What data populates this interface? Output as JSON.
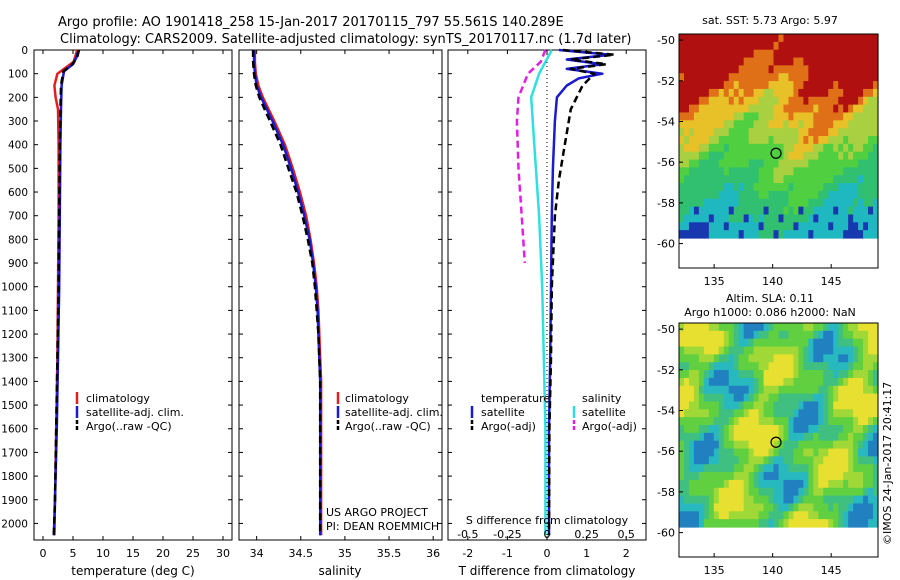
{
  "header": {
    "title_line1": "Argo profile: AO 1901418_258 15-Jan-2017 20170115_797 55.561S 140.289E",
    "title_line2": "Climatology: CARS2009. Satellite-adjusted climatology: synTS_20170117.nc (1.7d later)"
  },
  "footer": {
    "credit_line1": "US ARGO PROJECT",
    "credit_line2": "PI: DEAN ROEMMICH",
    "timestamp": "©IMOS 24-Jan-2017 20:41:17"
  },
  "colors": {
    "climatology": "#e02020",
    "satellite": "#1a1ad0",
    "argo": "#000000",
    "salinity_satellite": "#30e0e0",
    "salinity_argo": "#e020e0"
  },
  "depth_axis": {
    "ticks": [
      "0",
      "100",
      "200",
      "300",
      "400",
      "500",
      "600",
      "700",
      "800",
      "900",
      "1000",
      "1100",
      "1200",
      "1300",
      "1400",
      "1500",
      "1600",
      "1700",
      "1800",
      "1900",
      "2000"
    ],
    "ylim": [
      0,
      2070
    ],
    "reversed": true
  },
  "chart_data": [
    {
      "type": "line",
      "xlabel": "temperature (deg C)",
      "xlim": [
        -1.5,
        31.5
      ],
      "xticks": [
        "0",
        "5",
        "10",
        "15",
        "20",
        "25",
        "30"
      ],
      "xtick_values": [
        0,
        5,
        10,
        15,
        20,
        25,
        30
      ],
      "legend": [
        "climatology",
        "satellite-adj. clim.",
        "Argo(..raw -QC)"
      ],
      "legend_placement": "lower-center",
      "series": [
        {
          "name": "climatology",
          "style": "solid",
          "color": "#e02020",
          "depth": [
            0,
            50,
            100,
            150,
            200,
            250,
            400,
            700,
            1000,
            1300,
            1600,
            1900,
            2050
          ],
          "values": [
            5.7,
            5.1,
            2.4,
            1.9,
            2.1,
            2.5,
            2.6,
            2.6,
            2.5,
            2.4,
            2.2,
            2.0,
            1.9
          ]
        },
        {
          "name": "satellite-adj. clim.",
          "style": "solid",
          "color": "#1a1ad0",
          "depth": [
            0,
            30,
            60,
            90,
            150,
            250,
            400,
            700,
            1000,
            1300,
            1600,
            1900,
            2050
          ],
          "values": [
            5.9,
            5.6,
            5.0,
            3.5,
            3.1,
            3.0,
            2.9,
            2.8,
            2.7,
            2.5,
            2.3,
            2.0,
            1.8
          ]
        },
        {
          "name": "Argo(..raw -QC)",
          "style": "dashed",
          "color": "#000000",
          "depth": [
            0,
            30,
            60,
            90,
            150,
            250,
            400,
            700,
            1000,
            1300,
            1600,
            1900,
            2050
          ],
          "values": [
            6.0,
            5.7,
            4.9,
            3.4,
            3.0,
            2.9,
            2.8,
            2.7,
            2.6,
            2.4,
            2.2,
            2.0,
            1.8
          ]
        }
      ]
    },
    {
      "type": "line",
      "xlabel": "salinity",
      "xlim": [
        33.8,
        36.1
      ],
      "xticks": [
        "34",
        "34.5",
        "35",
        "35.5",
        "36"
      ],
      "xtick_values": [
        34,
        34.5,
        35,
        35.5,
        36
      ],
      "legend": [
        "climatology",
        "satellite-adj. clim.",
        "Argo(..raw -QC)"
      ],
      "legend_placement": "lower-right",
      "series": [
        {
          "name": "climatology",
          "style": "solid",
          "color": "#e02020",
          "depth": [
            0,
            50,
            100,
            150,
            200,
            300,
            400,
            500,
            600,
            700,
            800,
            900,
            1000,
            1100,
            1200,
            1300,
            1400,
            1600,
            2050
          ],
          "values": [
            33.98,
            33.98,
            33.99,
            34.02,
            34.07,
            34.2,
            34.32,
            34.41,
            34.49,
            34.56,
            34.61,
            34.65,
            34.68,
            34.7,
            34.71,
            34.72,
            34.73,
            34.73,
            34.73
          ]
        },
        {
          "name": "satellite-adj. clim.",
          "style": "solid",
          "color": "#1a1ad0",
          "depth": [
            0,
            50,
            100,
            150,
            200,
            300,
            400,
            500,
            600,
            700,
            800,
            900,
            1000,
            1100,
            1200,
            1300,
            1400,
            1600,
            2050
          ],
          "values": [
            33.97,
            33.97,
            33.98,
            34.0,
            34.05,
            34.18,
            34.3,
            34.39,
            34.47,
            34.54,
            34.6,
            34.64,
            34.67,
            34.69,
            34.7,
            34.71,
            34.72,
            34.72,
            34.72
          ]
        },
        {
          "name": "Argo(..raw -QC)",
          "style": "dashed",
          "color": "#000000",
          "depth": [
            0,
            50,
            100,
            150,
            200,
            300,
            400,
            500,
            600,
            700,
            800,
            900,
            1000,
            1100,
            1200,
            1300,
            1400,
            1600,
            2050
          ],
          "values": [
            33.96,
            33.96,
            33.97,
            33.99,
            34.03,
            34.15,
            34.27,
            34.36,
            34.45,
            34.52,
            34.58,
            34.63,
            34.66,
            34.68,
            34.7,
            34.71,
            34.72,
            34.72,
            34.72
          ]
        }
      ]
    },
    {
      "type": "line",
      "xlabel": "T difference from climatology",
      "xlabel_top": "S difference from climatology",
      "xlim": [
        -2.5,
        2.5
      ],
      "xticks": [
        "-2",
        "-1",
        "0",
        "1",
        "2"
      ],
      "xtick_values": [
        -2,
        -1,
        0,
        1,
        2
      ],
      "s_ticks": [
        "-0.5",
        "-0.25",
        "0",
        "0.25",
        "0.5"
      ],
      "s_tick_values": [
        -0.5,
        -0.25,
        0,
        0.25,
        0.5
      ],
      "legend_temperature": {
        "title": "temperature",
        "items": [
          "satellite",
          "Argo(-adj)"
        ]
      },
      "legend_salinity": {
        "title": "salinity",
        "items": [
          "satellite",
          "Argo(-adj)"
        ]
      },
      "legend_placement": "lower-center",
      "series": [
        {
          "name": "temperature satellite",
          "style": "solid",
          "color": "#1a1ad0",
          "depth": [
            0,
            20,
            40,
            60,
            80,
            100,
            120,
            150,
            200,
            300,
            500,
            700,
            1000,
            1300,
            1600,
            2050
          ],
          "values": [
            0.3,
            1.6,
            0.5,
            1.4,
            0.5,
            1.4,
            0.8,
            0.5,
            0.25,
            0.2,
            0.15,
            0.12,
            0.1,
            0.08,
            0.05,
            0.05
          ]
        },
        {
          "name": "temperature Argo(-adj)",
          "style": "dashed",
          "color": "#000000",
          "depth": [
            0,
            20,
            40,
            60,
            80,
            100,
            150,
            250,
            400,
            550,
            700,
            1000,
            1300,
            1600,
            2050
          ],
          "values": [
            0.4,
            1.7,
            0.6,
            1.5,
            0.6,
            1.2,
            0.9,
            0.6,
            0.45,
            0.3,
            0.2,
            0.12,
            0.1,
            0.06,
            0.05
          ]
        },
        {
          "name": "salinity satellite",
          "style": "solid",
          "color": "#30e0e0",
          "depth": [
            0,
            100,
            200,
            400,
            700,
            1000,
            1300,
            1600,
            2050
          ],
          "values": [
            0.03,
            -0.05,
            -0.1,
            -0.08,
            -0.05,
            -0.03,
            -0.02,
            -0.01,
            -0.01
          ]
        },
        {
          "name": "salinity Argo(-adj)",
          "style": "dashed",
          "color": "#e020e0",
          "depth": [
            0,
            50,
            100,
            200,
            300,
            500,
            700,
            900
          ],
          "values": [
            -0.01,
            -0.04,
            -0.12,
            -0.18,
            -0.19,
            -0.18,
            -0.16,
            -0.14
          ]
        }
      ]
    },
    {
      "type": "heatmap",
      "title": "sat. SST: 5.73  Argo: 5.97",
      "xticks": [
        "135",
        "140",
        "145"
      ],
      "xtick_values": [
        135,
        140,
        145
      ],
      "yticks": [
        "-50",
        "-52",
        "-54",
        "-56",
        "-58",
        "-60"
      ],
      "ytick_values": [
        -50,
        -52,
        -54,
        -56,
        -58,
        -60
      ],
      "xlim": [
        132,
        149
      ],
      "ylim": [
        -61.2,
        -49.7
      ],
      "marker": {
        "lon": 140.289,
        "lat": -55.561
      }
    },
    {
      "type": "heatmap",
      "title": "Altim. SLA: 0.11",
      "subtitle": "Argo h1000: 0.086  h2000: NaN",
      "xticks": [
        "135",
        "140",
        "145"
      ],
      "xtick_values": [
        135,
        140,
        145
      ],
      "yticks": [
        "-50",
        "-52",
        "-54",
        "-56",
        "-58",
        "-60"
      ],
      "ytick_values": [
        -50,
        -52,
        -54,
        -56,
        -58,
        -60
      ],
      "xlim": [
        132,
        149
      ],
      "ylim": [
        -61.2,
        -49.7
      ],
      "marker": {
        "lon": 140.289,
        "lat": -55.561
      }
    }
  ]
}
